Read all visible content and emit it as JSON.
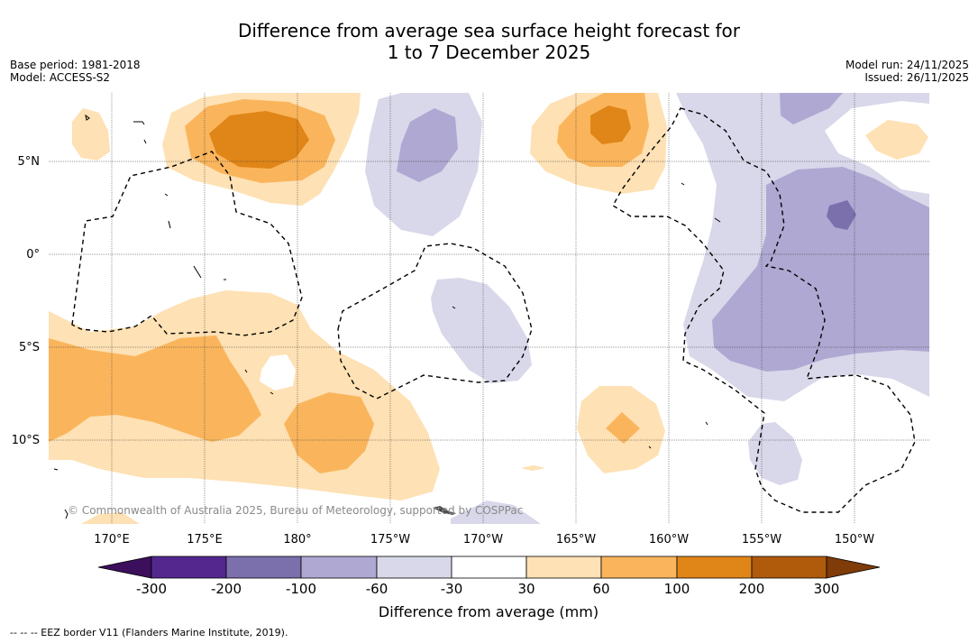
{
  "title_line1": "Difference from average sea surface height forecast for",
  "title_line2": "1 to 7 December 2025",
  "base_period": "Base period: 1981-2018",
  "model": "Model: ACCESS-S2",
  "model_run": "Model run: 24/11/2025",
  "issued": "Issued: 26/11/2025",
  "longitude_labels": [
    "170°E",
    "175°E",
    "180°",
    "175°W",
    "170°W",
    "165°W",
    "160°W",
    "155°W",
    "150°W"
  ],
  "latitude_labels": [
    "5°N",
    "0°",
    "5°S",
    "10°S"
  ],
  "copyright": "© Commonwealth of Australia 2025, Bureau of Meteorology, supported by COSPPac",
  "colorbar": {
    "title": "Difference from average (mm)",
    "ticks": [
      "-300",
      "-200",
      "-100",
      "-60",
      "-30",
      "30",
      "60",
      "100",
      "200",
      "300"
    ],
    "colors": {
      "below_-300": "#3b0f5c",
      "-300_-200": "#54278f",
      "-200_-100": "#7b6fac",
      "-100_-60": "#aea8d2",
      "-60_-30": "#d8d8ea",
      "-30_30": "#ffffff",
      "30_60": "#fee1b4",
      "60_100": "#fab55c",
      "100_200": "#e08518",
      "200_300": "#b05a0c",
      "above_300": "#7f3b08"
    }
  },
  "legend_footer": "--  --  -- EEZ border V11 (Flanders Marine Institute, 2019)."
}
